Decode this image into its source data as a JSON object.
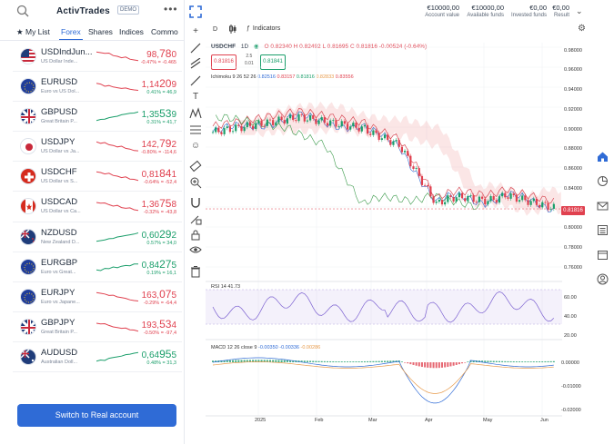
{
  "brand": {
    "logo_text": "ActivTrades",
    "badge": "DEMO"
  },
  "tabs": [
    "My List",
    "Forex",
    "Shares",
    "Indices",
    "Commo"
  ],
  "active_tab_index": 1,
  "instruments": [
    {
      "symbol": "USDIndJun...",
      "desc": "US Dollar Inde...",
      "price_main": "98,",
      "price_big": "78",
      "price_tail": "0",
      "change": "-0.47% = -0.465",
      "dir": "down",
      "flag": "us",
      "spark": [
        0.2,
        0.25,
        0.3,
        0.28,
        0.45,
        0.5,
        0.6,
        0.55,
        0.7,
        0.75,
        0.8
      ]
    },
    {
      "symbol": "EURUSD",
      "desc": "Euro vs US Dol...",
      "price_main": "1,14",
      "price_big": "20",
      "price_tail": "9",
      "change": "0.41% = 46,9",
      "dir": "down",
      "flag": "eu",
      "spark": [
        0.3,
        0.35,
        0.5,
        0.45,
        0.55,
        0.6,
        0.65,
        0.62,
        0.7,
        0.75,
        0.78
      ]
    },
    {
      "symbol": "GBPUSD",
      "desc": "Great Britain P...",
      "price_main": "1,35",
      "price_big": "53",
      "price_tail": "9",
      "change": "0.31% = 41,7",
      "dir": "up",
      "flag": "gb",
      "spark": [
        0.8,
        0.72,
        0.7,
        0.6,
        0.55,
        0.5,
        0.4,
        0.35,
        0.3,
        0.28,
        0.2
      ]
    },
    {
      "symbol": "USDJPY",
      "desc": "US Dollar vs Ja...",
      "price_main": "142,",
      "price_big": "79",
      "price_tail": "2",
      "change": "-0.80% = -114,6",
      "dir": "down",
      "flag": "jp",
      "spark": [
        0.2,
        0.3,
        0.25,
        0.4,
        0.45,
        0.55,
        0.5,
        0.65,
        0.7,
        0.8,
        0.82
      ]
    },
    {
      "symbol": "USDCHF",
      "desc": "US Dollar vs S...",
      "price_main": "0,81",
      "price_big": "84",
      "price_tail": "1",
      "change": "-0.64% = -52,4",
      "dir": "down",
      "flag": "ch",
      "spark": [
        0.2,
        0.25,
        0.35,
        0.3,
        0.45,
        0.5,
        0.6,
        0.55,
        0.7,
        0.72,
        0.8
      ]
    },
    {
      "symbol": "USDCAD",
      "desc": "US Dollar vs Ca...",
      "price_main": "1,36",
      "price_big": "75",
      "price_tail": "8",
      "change": "-0.32% = -43,8",
      "dir": "down",
      "flag": "ca",
      "spark": [
        0.25,
        0.3,
        0.28,
        0.4,
        0.5,
        0.45,
        0.6,
        0.65,
        0.62,
        0.75,
        0.8
      ]
    },
    {
      "symbol": "NZDUSD",
      "desc": "New Zealand D...",
      "price_main": "0,60",
      "price_big": "29",
      "price_tail": "2",
      "change": "0.57% = 34,0",
      "dir": "up",
      "flag": "nz",
      "spark": [
        0.8,
        0.75,
        0.7,
        0.62,
        0.6,
        0.5,
        0.45,
        0.4,
        0.35,
        0.3,
        0.22
      ]
    },
    {
      "symbol": "EURGBP",
      "desc": "Euro vs Great...",
      "price_main": "0,84",
      "price_big": "27",
      "price_tail": "5",
      "change": "0.19% = 16,1",
      "dir": "up",
      "flag": "eu",
      "spark": [
        0.7,
        0.75,
        0.6,
        0.62,
        0.5,
        0.55,
        0.45,
        0.4,
        0.42,
        0.3,
        0.3
      ]
    },
    {
      "symbol": "EURJPY",
      "desc": "Euro vs Japane...",
      "price_main": "163,",
      "price_big": "07",
      "price_tail": "5",
      "change": "-0.29% = -64,4",
      "dir": "down",
      "flag": "eu",
      "spark": [
        0.2,
        0.25,
        0.3,
        0.4,
        0.38,
        0.5,
        0.55,
        0.6,
        0.7,
        0.75,
        0.78
      ]
    },
    {
      "symbol": "GBPJPY",
      "desc": "Great Britain P...",
      "price_main": "193,",
      "price_big": "53",
      "price_tail": "4",
      "change": "-0.50% = -97,4",
      "dir": "down",
      "flag": "gb",
      "spark": [
        0.25,
        0.3,
        0.28,
        0.4,
        0.5,
        0.55,
        0.6,
        0.58,
        0.7,
        0.72,
        0.8
      ]
    },
    {
      "symbol": "AUDUSD",
      "desc": "Australian Doll...",
      "price_main": "0,64",
      "price_big": "95",
      "price_tail": "5",
      "change": "0.48% = 31,3",
      "dir": "up",
      "flag": "au",
      "spark": [
        0.8,
        0.72,
        0.75,
        0.6,
        0.55,
        0.5,
        0.45,
        0.35,
        0.32,
        0.25,
        0.2
      ]
    }
  ],
  "real_account_button": "Switch to Real account",
  "account": [
    {
      "value": "€10000,00",
      "label": "Account value"
    },
    {
      "value": "€10000,00",
      "label": "Available funds"
    },
    {
      "value": "€0,00",
      "label": "Invested funds"
    },
    {
      "value": "€0,00",
      "label": "Result"
    }
  ],
  "chart": {
    "timeframe": "D",
    "indicators_label": "Indicators",
    "legend_symbol": "USDCHF",
    "legend_period": "1D",
    "legend_ohlc": "O 0.82340  H 0.82492  L 0.81695  C 0.81816  -0.00524 (-0.64%)",
    "sell_quote": "0.81816",
    "buy_quote": "0.81841",
    "spread_top": "2.5",
    "spread_bottom": "0.01",
    "ichimoku_label": "Ichimoku 9 26 52 26",
    "ichimoku_values": [
      "0.82516",
      "0.83157",
      "0.81816",
      "0.82833",
      "0.83556"
    ],
    "last_price_tag": "0.81816",
    "rsi_label": "RSI 14  41.73",
    "macd_label": "MACD 12 26 close 9",
    "macd_values": [
      "-0.00350",
      "-0.00336",
      "-0.00286"
    ],
    "price_axis": [
      "0.98000",
      "0.96000",
      "0.94000",
      "0.92000",
      "0.90000",
      "0.88000",
      "0.86000",
      "0.84000",
      "0.80000",
      "0.78000",
      "0.76000"
    ],
    "rsi_axis": [
      "60.00",
      "40.00",
      "20.00"
    ],
    "macd_axis": [
      "0.00000",
      "-0.01000",
      "-0.02000"
    ],
    "time_axis": [
      "2025",
      "Feb",
      "Mar",
      "Apr",
      "May",
      "Jun"
    ]
  },
  "colors": {
    "accent": "#2f6bd6",
    "up": "#1a9e6a",
    "down": "#e0414f"
  }
}
